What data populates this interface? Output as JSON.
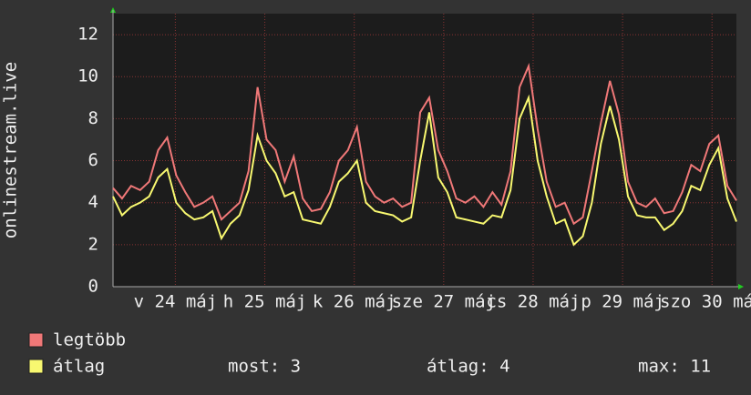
{
  "chart_data": {
    "type": "line",
    "ylabel": "onlinestream.live",
    "ylim": [
      0,
      13
    ],
    "yticks": [
      0,
      2,
      4,
      6,
      8,
      10,
      12
    ],
    "xlim": [
      0,
      69
    ],
    "xticks": [
      {
        "value": 6.9,
        "label": "v 24 máj"
      },
      {
        "value": 16.8,
        "label": "h 25 máj"
      },
      {
        "value": 26.7,
        "label": "k 26 máj"
      },
      {
        "value": 36.6,
        "label": "sze 27 máj"
      },
      {
        "value": 46.5,
        "label": "cs 28 máj"
      },
      {
        "value": 56.4,
        "label": "p 29 máj"
      },
      {
        "value": 66.3,
        "label": "szo 30 máj"
      }
    ],
    "grid": true,
    "series": [
      {
        "name": "legtöbb",
        "color": "#f07878",
        "values": [
          4.7,
          4.2,
          4.8,
          4.6,
          5.0,
          6.5,
          7.1,
          5.3,
          4.5,
          3.8,
          4.0,
          4.3,
          3.2,
          3.6,
          4.0,
          5.5,
          9.5,
          7.0,
          6.5,
          5.0,
          6.2,
          4.2,
          3.6,
          3.7,
          4.5,
          6.0,
          6.5,
          7.6,
          5.0,
          4.3,
          4.0,
          4.2,
          3.8,
          4.0,
          8.3,
          9.0,
          6.5,
          5.5,
          4.2,
          4.0,
          4.3,
          3.8,
          4.5,
          3.9,
          5.5,
          9.5,
          10.5,
          7.5,
          5.0,
          3.8,
          4.0,
          3.0,
          3.3,
          5.5,
          7.8,
          9.8,
          8.2,
          5.0,
          4.0,
          3.8,
          4.2,
          3.5,
          3.6,
          4.5,
          5.8,
          5.5,
          6.8,
          7.2,
          4.8,
          4.1
        ]
      },
      {
        "name": "átlag",
        "color": "#f8f870",
        "values": [
          4.3,
          3.4,
          3.8,
          4.0,
          4.3,
          5.2,
          5.6,
          4.0,
          3.5,
          3.2,
          3.3,
          3.6,
          2.3,
          3.0,
          3.4,
          4.6,
          7.2,
          6.0,
          5.4,
          4.3,
          4.5,
          3.2,
          3.1,
          3.0,
          3.8,
          5.0,
          5.4,
          6.0,
          4.0,
          3.6,
          3.5,
          3.4,
          3.1,
          3.3,
          6.0,
          8.3,
          5.2,
          4.5,
          3.3,
          3.2,
          3.1,
          3.0,
          3.4,
          3.3,
          4.6,
          8.0,
          9.0,
          6.0,
          4.3,
          3.0,
          3.2,
          2.0,
          2.4,
          4.0,
          6.8,
          8.6,
          7.0,
          4.3,
          3.4,
          3.3,
          3.3,
          2.7,
          3.0,
          3.6,
          4.8,
          4.6,
          5.8,
          6.6,
          4.2,
          3.1
        ]
      }
    ],
    "stats": [
      "most: 3",
      "átlag: 4",
      "max: 11"
    ]
  }
}
